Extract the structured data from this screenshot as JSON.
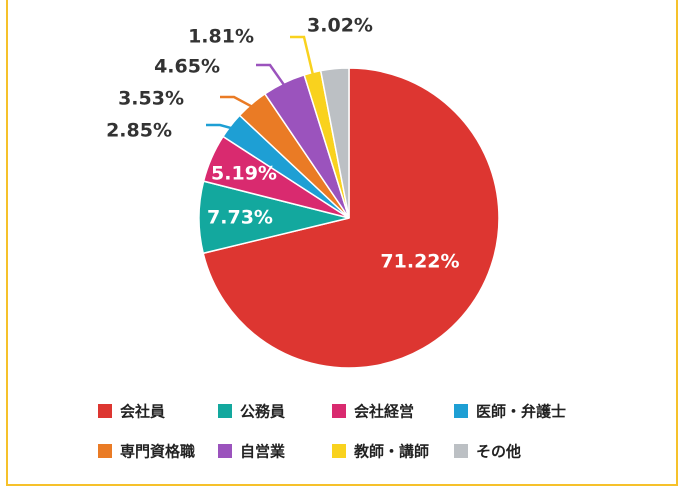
{
  "chart_data": {
    "type": "pie",
    "title": "",
    "slices": [
      {
        "label": "会社員",
        "value": 71.22,
        "display": "71.22%",
        "color": "#dd3631"
      },
      {
        "label": "公務員",
        "value": 7.73,
        "display": "7.73%",
        "color": "#13a89e"
      },
      {
        "label": "会社経営",
        "value": 5.19,
        "display": "5.19%",
        "color": "#d92a6f"
      },
      {
        "label": "医師・弁護士",
        "value": 2.85,
        "display": "2.85%",
        "color": "#1e9fd4"
      },
      {
        "label": "専門資格職",
        "value": 3.53,
        "display": "3.53%",
        "color": "#ea7b25"
      },
      {
        "label": "自営業",
        "value": 4.65,
        "display": "4.65%",
        "color": "#9b53bd"
      },
      {
        "label": "教師・講師",
        "value": 1.81,
        "display": "1.81%",
        "color": "#f9d21e"
      },
      {
        "label": "その他",
        "value": 3.02,
        "display": "3.02%",
        "color": "#bcc0c4"
      }
    ],
    "legend_position": "bottom",
    "start": "top",
    "direction": "clockwise"
  }
}
